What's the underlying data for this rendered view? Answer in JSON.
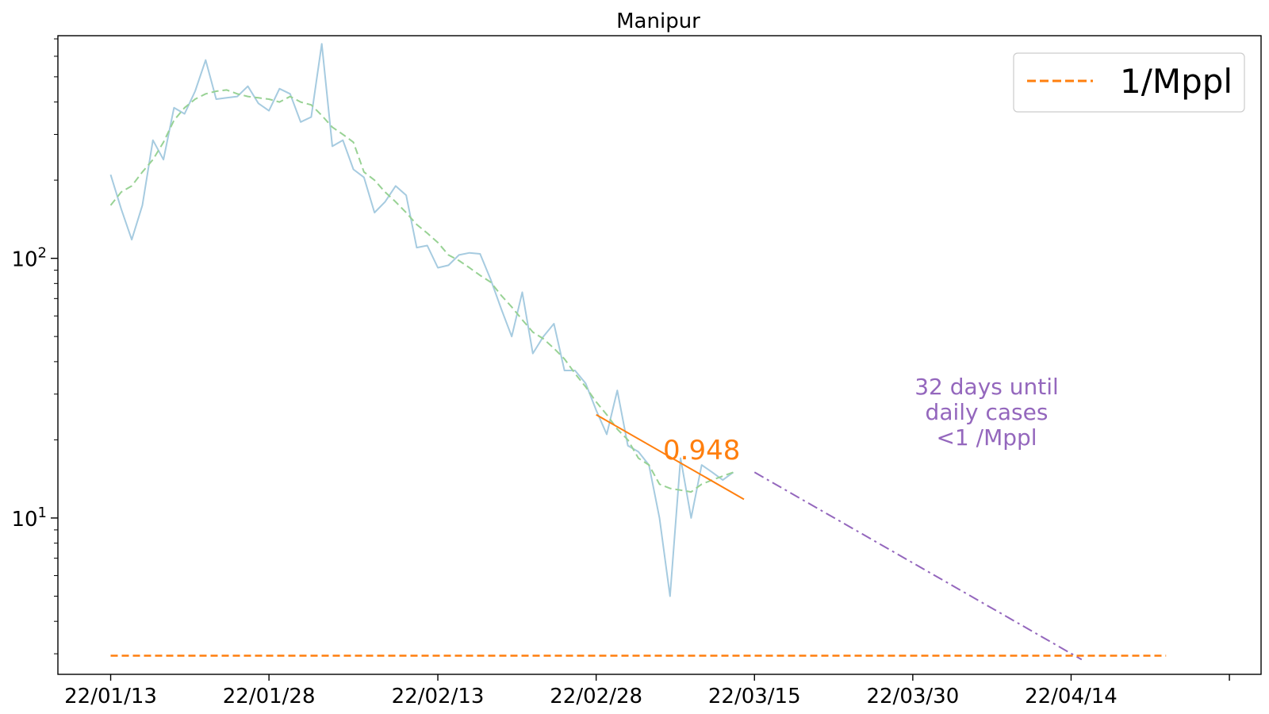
{
  "chart_data": {
    "type": "line",
    "title": "Manipur",
    "xlabel": "",
    "ylabel": "",
    "yscale": "log",
    "ylim": [
      2.5,
      720
    ],
    "xlim": [
      "2022-01-08",
      "2022-05-02"
    ],
    "grid": false,
    "x_tick_labels": [
      "22/01/13",
      "22/01/28",
      "22/02/13",
      "22/02/28",
      "22/03/15",
      "22/03/30",
      "22/04/14"
    ],
    "x_tick_dates": [
      "2022-01-13",
      "2022-01-28",
      "2022-02-13",
      "2022-02-28",
      "2022-03-15",
      "2022-03-30",
      "2022-04-14"
    ],
    "y_tick_labels": [
      {
        "value": 10,
        "base": "10",
        "exp": "1"
      },
      {
        "value": 100,
        "base": "10",
        "exp": "2"
      }
    ],
    "legend": {
      "placement": "top-right",
      "entries": [
        {
          "label": "1/Mppl",
          "color": "#ff7f0e",
          "style": "dashed"
        }
      ]
    },
    "series": [
      {
        "style": "solid",
        "color": "#a6cbe0",
        "start": "2022-01-13",
        "values": [
          210,
          155,
          118,
          160,
          285,
          240,
          380,
          360,
          440,
          580,
          410,
          415,
          420,
          460,
          395,
          370,
          450,
          430,
          335,
          350,
          670,
          270,
          285,
          220,
          205,
          150,
          165,
          190,
          175,
          110,
          112,
          92,
          94,
          103,
          105,
          104,
          83,
          64,
          50,
          74,
          43,
          50,
          56,
          37,
          37,
          33,
          26,
          21,
          31,
          19,
          18,
          16,
          10,
          5,
          17,
          10,
          16,
          15,
          14,
          15
        ]
      },
      {
        "style": "dashed",
        "color": "#98d294",
        "start": "2022-01-13",
        "values": [
          160,
          180,
          190,
          215,
          240,
          280,
          340,
          380,
          410,
          430,
          440,
          445,
          430,
          420,
          415,
          410,
          400,
          420,
          400,
          390,
          355,
          320,
          300,
          280,
          215,
          200,
          180,
          165,
          150,
          135,
          125,
          115,
          103,
          98,
          92,
          86,
          81,
          72,
          65,
          58,
          52,
          49,
          45,
          41,
          36,
          32,
          28,
          25,
          22,
          20,
          17,
          16,
          13.5,
          13,
          12.8,
          12.6,
          13.5,
          14,
          14.5,
          15
        ]
      },
      {
        "style": "solid",
        "color": "#ff7f0e",
        "label": "fit",
        "x": [
          "2022-02-28",
          "2022-03-14"
        ],
        "values": [
          25,
          11.8
        ]
      },
      {
        "style": "dashdot",
        "color": "#9467bd",
        "label": "projection",
        "x": [
          "2022-03-15",
          "2022-04-15"
        ],
        "values": [
          15,
          2.85
        ]
      },
      {
        "style": "dashed",
        "color": "#ff7f0e",
        "label": "1/Mppl",
        "x": [
          "2022-01-13",
          "2022-04-23"
        ],
        "values": [
          2.95,
          2.95
        ]
      }
    ],
    "annotations": [
      {
        "text": "0.948",
        "color": "#ff7f0e",
        "x": "2022-03-10",
        "y": 16.8
      },
      {
        "lines": [
          "32 days until",
          "daily cases",
          "<1 /Mppl"
        ],
        "color": "#9467bd",
        "x": "2022-04-06",
        "y": 30
      }
    ]
  }
}
